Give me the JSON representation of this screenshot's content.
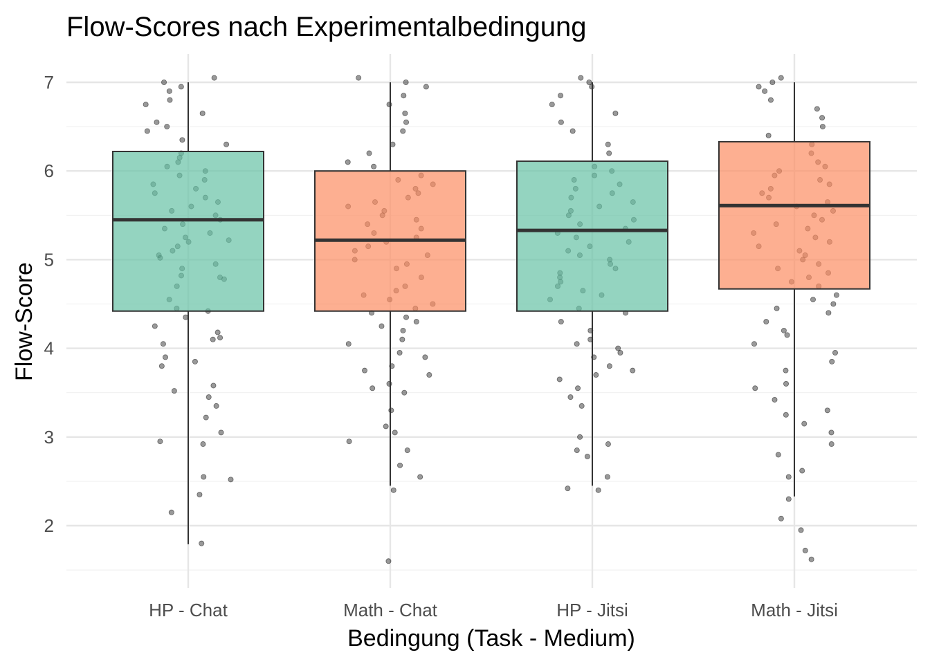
{
  "chart_data": {
    "type": "boxplot",
    "title": "Flow-Scores nach Experimentalbedingung",
    "xlabel": "Bedingung (Task - Medium)",
    "ylabel": "Flow-Score",
    "categories": [
      "HP - Chat",
      "Math - Chat",
      "HP - Jitsi",
      "Math - Jitsi"
    ],
    "y_ticks": [
      2,
      3,
      4,
      5,
      6,
      7
    ],
    "y_tick_labels": [
      "2",
      "3",
      "4",
      "5",
      "6",
      "7"
    ],
    "ylim": [
      1.5,
      7.25
    ],
    "grid": true,
    "legend": "none",
    "boxes": [
      {
        "category": "HP - Chat",
        "whisker_low": 1.79,
        "q1": 4.42,
        "median": 5.45,
        "q3": 6.22,
        "whisker_high": 7.0,
        "fill": "#66c2a5"
      },
      {
        "category": "Math - Chat",
        "whisker_low": 2.45,
        "q1": 4.42,
        "median": 5.22,
        "q3": 6.0,
        "whisker_high": 7.0,
        "fill": "#fc8d62"
      },
      {
        "category": "HP - Jitsi",
        "whisker_low": 2.45,
        "q1": 4.42,
        "median": 5.33,
        "q3": 6.11,
        "whisker_high": 7.0,
        "fill": "#66c2a5"
      },
      {
        "category": "Math - Jitsi",
        "whisker_low": 2.33,
        "q1": 4.67,
        "median": 5.61,
        "q3": 6.33,
        "whisker_high": 7.0,
        "fill": "#fc8d62"
      }
    ],
    "jitter_points": [
      {
        "category": "HP - Chat",
        "values": [
          1.8,
          2.15,
          2.35,
          2.52,
          2.55,
          2.92,
          2.95,
          3.05,
          3.22,
          3.35,
          3.45,
          3.52,
          3.58,
          3.8,
          3.85,
          3.9,
          4.05,
          4.1,
          4.12,
          4.18,
          4.25,
          4.35,
          4.42,
          4.45,
          4.55,
          4.7,
          4.78,
          4.8,
          4.82,
          4.9,
          4.95,
          5.02,
          5.05,
          5.1,
          5.15,
          5.2,
          5.22,
          5.25,
          5.3,
          5.35,
          5.4,
          5.45,
          5.5,
          5.55,
          5.6,
          5.65,
          5.7,
          5.75,
          5.8,
          5.85,
          5.9,
          5.95,
          6.0,
          6.05,
          6.1,
          6.15,
          6.2,
          6.3,
          6.35,
          6.45,
          6.5,
          6.55,
          6.65,
          6.75,
          6.8,
          6.9,
          6.95,
          7.0,
          7.05
        ]
      },
      {
        "category": "Math - Chat",
        "values": [
          1.6,
          2.4,
          2.55,
          2.68,
          2.85,
          2.95,
          3.05,
          3.12,
          3.3,
          3.5,
          3.55,
          3.6,
          3.7,
          3.75,
          3.8,
          3.9,
          3.95,
          4.05,
          4.1,
          4.2,
          4.25,
          4.3,
          4.35,
          4.4,
          4.45,
          4.5,
          4.55,
          4.6,
          4.65,
          4.7,
          4.8,
          4.9,
          4.95,
          5.0,
          5.05,
          5.1,
          5.15,
          5.2,
          5.25,
          5.3,
          5.35,
          5.4,
          5.45,
          5.5,
          5.55,
          5.6,
          5.65,
          5.7,
          5.75,
          5.8,
          5.85,
          5.9,
          5.95,
          6.05,
          6.1,
          6.2,
          6.3,
          6.45,
          6.55,
          6.65,
          6.75,
          6.85,
          6.95,
          7.0,
          7.05
        ]
      },
      {
        "category": "HP - Jitsi",
        "values": [
          2.4,
          2.42,
          2.55,
          2.78,
          2.85,
          2.92,
          3.0,
          3.35,
          3.45,
          3.55,
          3.65,
          3.7,
          3.75,
          3.8,
          3.9,
          3.95,
          4.0,
          4.05,
          4.1,
          4.2,
          4.3,
          4.4,
          4.45,
          4.55,
          4.6,
          4.65,
          4.7,
          4.75,
          4.8,
          4.85,
          4.9,
          4.95,
          5.0,
          5.05,
          5.1,
          5.15,
          5.2,
          5.25,
          5.3,
          5.35,
          5.4,
          5.45,
          5.5,
          5.55,
          5.6,
          5.65,
          5.7,
          5.75,
          5.8,
          5.85,
          5.9,
          5.95,
          6.0,
          6.05,
          6.2,
          6.3,
          6.45,
          6.55,
          6.65,
          6.75,
          6.85,
          6.95,
          7.0,
          7.05
        ]
      },
      {
        "category": "Math - Jitsi",
        "values": [
          1.62,
          1.72,
          1.95,
          2.08,
          2.3,
          2.55,
          2.62,
          2.8,
          2.92,
          3.05,
          3.15,
          3.25,
          3.3,
          3.42,
          3.55,
          3.6,
          3.75,
          3.85,
          3.95,
          4.05,
          4.15,
          4.2,
          4.3,
          4.4,
          4.45,
          4.5,
          4.55,
          4.6,
          4.7,
          4.75,
          4.8,
          4.85,
          4.9,
          4.95,
          5.0,
          5.05,
          5.1,
          5.15,
          5.2,
          5.25,
          5.3,
          5.35,
          5.4,
          5.45,
          5.5,
          5.55,
          5.6,
          5.65,
          5.7,
          5.75,
          5.8,
          5.85,
          5.9,
          5.95,
          6.0,
          6.05,
          6.1,
          6.2,
          6.3,
          6.4,
          6.5,
          6.6,
          6.7,
          6.8,
          6.9,
          6.95,
          7.0,
          7.05
        ]
      }
    ]
  }
}
